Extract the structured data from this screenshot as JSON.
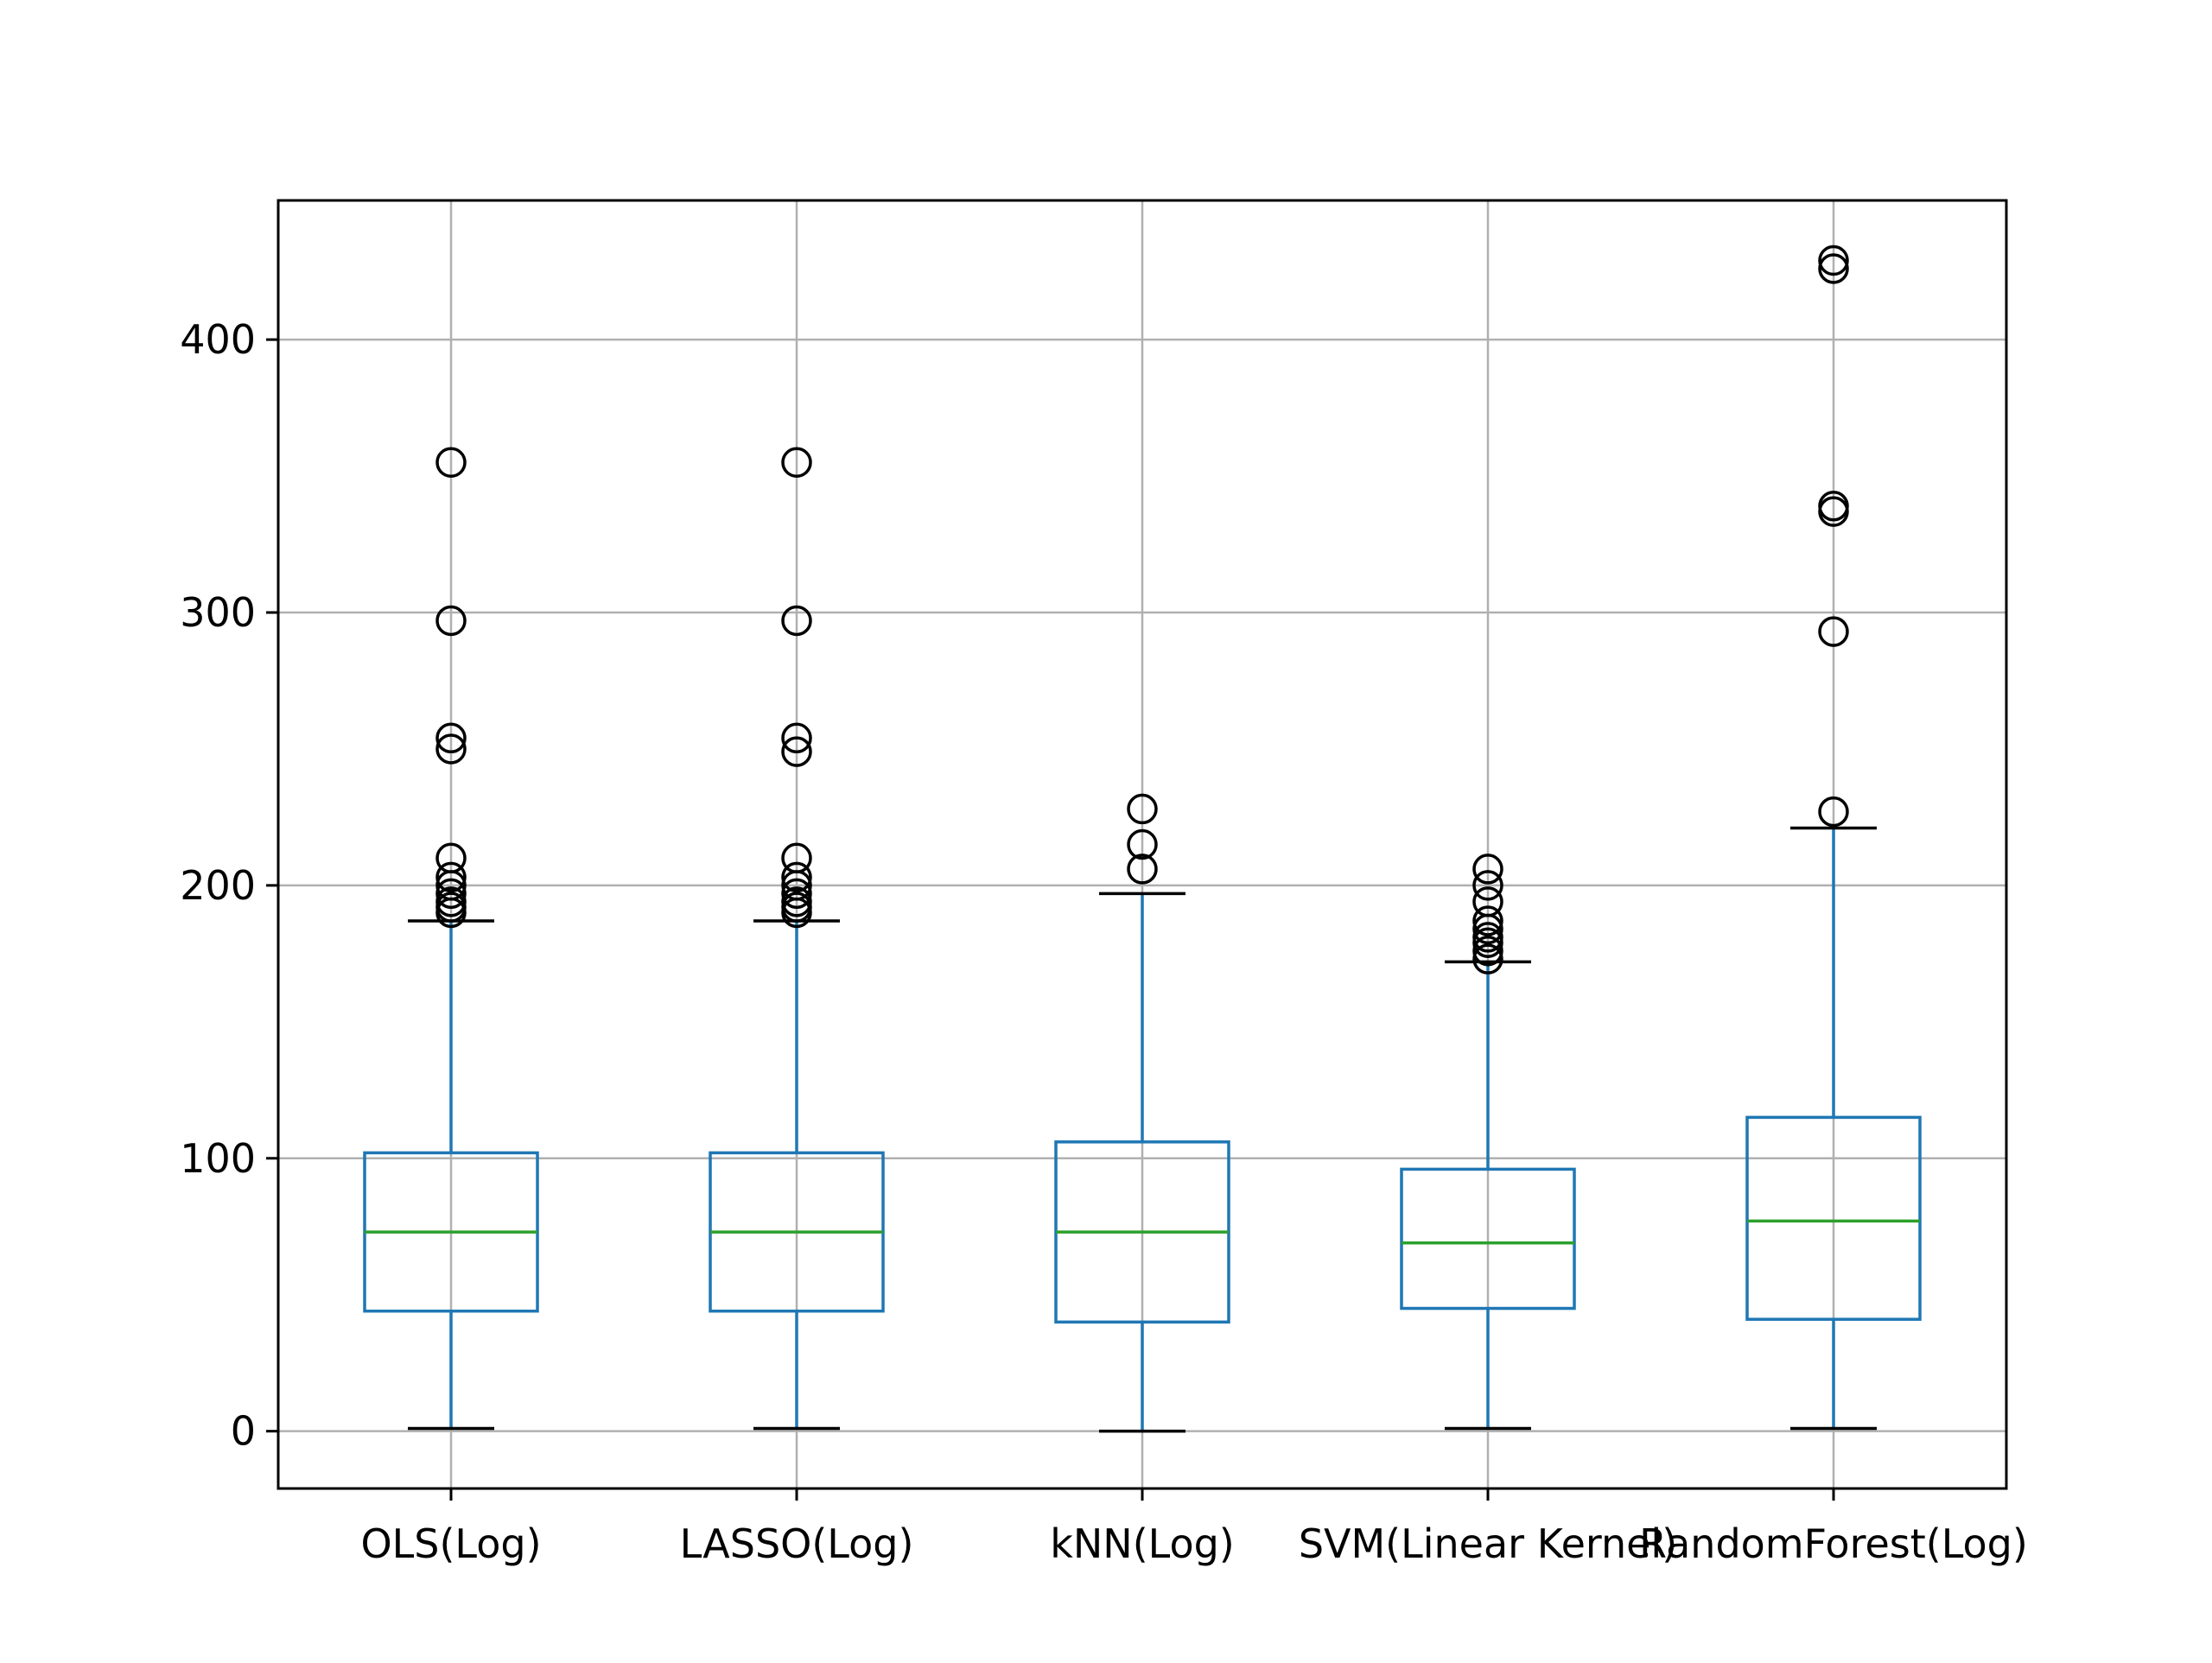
{
  "chart_data": {
    "type": "box",
    "title": "",
    "xlabel": "",
    "ylabel": "",
    "ylim": [
      -21,
      451
    ],
    "yticks": [
      0,
      100,
      200,
      300,
      400
    ],
    "grid": true,
    "categories": [
      "OLS(Log)",
      "LASSO(Log)",
      "kNN(Log)",
      "SVM(Linear Kernel)",
      "RandomForest(Log)"
    ],
    "boxes": [
      {
        "name": "OLS(Log)",
        "whisker_low": 1,
        "q1": 44,
        "median": 73,
        "q3": 102,
        "whisker_high": 187,
        "outliers": [
          190,
          192,
          194,
          197,
          200,
          203,
          210,
          250,
          254,
          297,
          355
        ]
      },
      {
        "name": "LASSO(Log)",
        "whisker_low": 1,
        "q1": 44,
        "median": 73,
        "q3": 102,
        "whisker_high": 187,
        "outliers": [
          190,
          192,
          194,
          197,
          200,
          203,
          210,
          249,
          254,
          297,
          355
        ]
      },
      {
        "name": "kNN(Log)",
        "whisker_low": 0,
        "q1": 40,
        "median": 73,
        "q3": 106,
        "whisker_high": 197,
        "outliers": [
          206,
          215,
          228
        ]
      },
      {
        "name": "SVM(Linear Kernel)",
        "whisker_low": 1,
        "q1": 45,
        "median": 69,
        "q3": 96,
        "whisker_high": 172,
        "outliers": [
          173,
          176,
          179,
          181,
          184,
          187,
          194,
          200,
          206
        ]
      },
      {
        "name": "RandomForest(Log)",
        "whisker_low": 1,
        "q1": 41,
        "median": 77,
        "q3": 115,
        "whisker_high": 221,
        "outliers": [
          227,
          293,
          337,
          339,
          426,
          429
        ]
      }
    ],
    "colors": {
      "box": "#1f77b4",
      "median": "#2ca02c",
      "whisker_cap": "#000000",
      "outlier_edge": "#000000",
      "grid": "#b0b0b0",
      "axes": "#000000"
    }
  }
}
